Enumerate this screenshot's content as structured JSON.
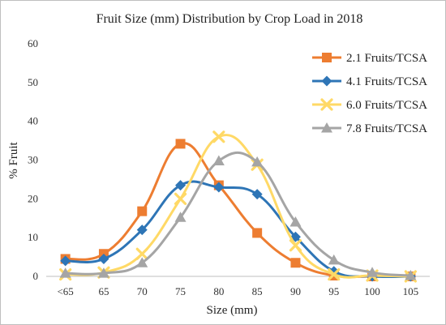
{
  "chart_data": {
    "type": "line",
    "title": "Fruit Size (mm) Distribution by Crop Load in 2018",
    "xlabel": "Size (mm)",
    "ylabel": "% Fruit",
    "categories": [
      "<65",
      "65",
      "70",
      "75",
      "80",
      "85",
      "90",
      "95",
      "100",
      "105"
    ],
    "ylim": [
      0,
      60
    ],
    "yticks": [
      0,
      10,
      20,
      30,
      40,
      50,
      60
    ],
    "grid": false,
    "smooth": true,
    "legend_position": "top-right",
    "series": [
      {
        "name": "2.1 Fruits/TCSA",
        "color": "#ED7D31",
        "marker": "square",
        "values": [
          4.5,
          5.8,
          16.8,
          34.2,
          23.5,
          11.2,
          3.5,
          0.2,
          0,
          0
        ]
      },
      {
        "name": "4.1 Fruits/TCSA",
        "color": "#2E75B6",
        "marker": "diamond",
        "values": [
          4.0,
          4.5,
          12.0,
          23.5,
          23.0,
          21.2,
          10.2,
          1.3,
          0,
          0
        ]
      },
      {
        "name": "6.0 Fruits/TCSA",
        "color": "#FFD966",
        "marker": "x",
        "values": [
          0.5,
          1.0,
          5.8,
          20.0,
          36.0,
          28.8,
          8.0,
          0.5,
          0.2,
          0
        ]
      },
      {
        "name": "7.8 Fruits/TCSA",
        "color": "#A5A5A5",
        "marker": "triangle",
        "values": [
          0.8,
          0.8,
          3.5,
          15.2,
          29.8,
          29.5,
          14.0,
          4.2,
          1.0,
          0.2
        ]
      }
    ]
  }
}
